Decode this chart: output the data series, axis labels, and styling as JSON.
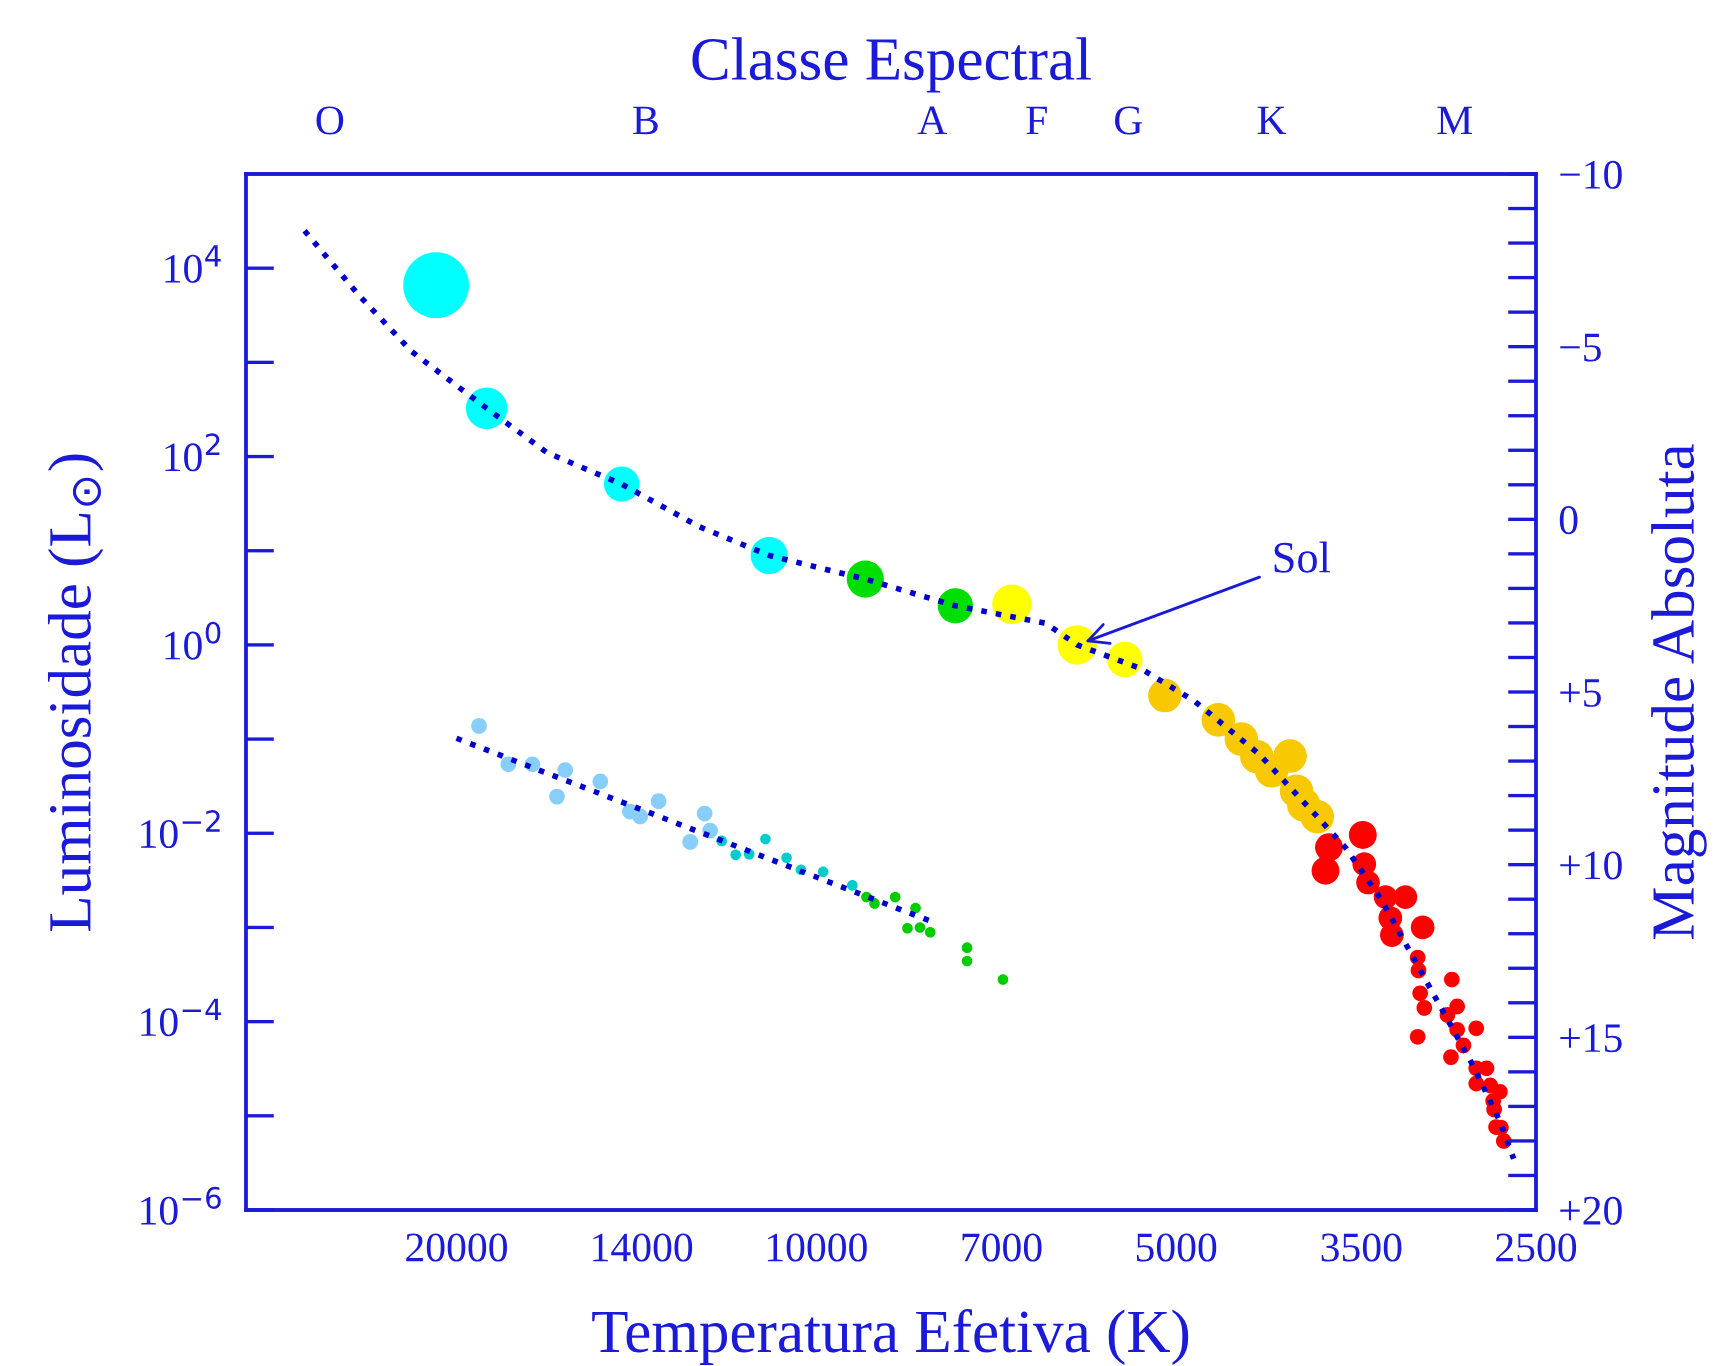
{
  "chart_data": {
    "type": "bubble",
    "log": "xy",
    "xlabel": "Temperatura Efetiva (K)",
    "ylabel": "Luminosidade (L$_{⊙}$)",
    "y2label": "Magnitude Absoluta",
    "title": "Classe Espectral",
    "xlim": [
      30000,
      2500
    ],
    "xticks": [
      20000,
      14000,
      10000,
      7000,
      5000,
      3500,
      2500
    ],
    "ylim": [
      1e-06,
      100000.0
    ],
    "yticks": [
      {
        "value": 1e-06,
        "label": "10$^{−6}$"
      },
      {
        "value": 1e-05,
        "label": null
      },
      {
        "value": 0.0001,
        "label": "10$^{−4}$"
      },
      {
        "value": 0.001,
        "label": null
      },
      {
        "value": 0.01,
        "label": "10$^{−2}$"
      },
      {
        "value": 0.1,
        "label": null
      },
      {
        "value": 1,
        "label": "10$^{0}$"
      },
      {
        "value": 10,
        "label": null
      },
      {
        "value": 100,
        "label": "10$^{2}$"
      },
      {
        "value": 1000,
        "label": null
      },
      {
        "value": 10000,
        "label": "10$^{4}$"
      }
    ],
    "y2lim": [
      20,
      -10
    ],
    "y2ticks": [
      {
        "value": -10,
        "label": "−10"
      },
      {
        "value": -9,
        "label": null
      },
      {
        "value": -8,
        "label": null
      },
      {
        "value": -7,
        "label": null
      },
      {
        "value": -6,
        "label": null
      },
      {
        "value": -5,
        "label": "−5"
      },
      {
        "value": -4,
        "label": null
      },
      {
        "value": -3,
        "label": null
      },
      {
        "value": -2,
        "label": null
      },
      {
        "value": -1,
        "label": null
      },
      {
        "value": 0,
        "label": "0"
      },
      {
        "value": 1,
        "label": null
      },
      {
        "value": 2,
        "label": null
      },
      {
        "value": 3,
        "label": null
      },
      {
        "value": 4,
        "label": null
      },
      {
        "value": 5,
        "label": "+5"
      },
      {
        "value": 6,
        "label": null
      },
      {
        "value": 7,
        "label": null
      },
      {
        "value": 8,
        "label": null
      },
      {
        "value": 9,
        "label": null
      },
      {
        "value": 10,
        "label": "+10"
      },
      {
        "value": 11,
        "label": null
      },
      {
        "value": 12,
        "label": null
      },
      {
        "value": 13,
        "label": null
      },
      {
        "value": 14,
        "label": null
      },
      {
        "value": 15,
        "label": "+15"
      },
      {
        "value": 16,
        "label": null
      },
      {
        "value": 17,
        "label": null
      },
      {
        "value": 18,
        "label": null
      },
      {
        "value": 19,
        "label": null
      },
      {
        "value": 20,
        "label": "+20"
      }
    ],
    "marker": "circle",
    "annotations": [
      {
        "text": "Sol",
        "x": 6050,
        "y": 1.0
      },
      "O",
      "B",
      "A",
      "F",
      "G",
      "K",
      "M"
    ],
    "series": [
      {
        "x": [
          20800,
          18870,
          14550,
          10950,
          9100,
          7650,
          6860,
          6050,
          5520,
          5110,
          4610,
          4410,
          4280,
          4015,
          4160,
          3965,
          3910,
          3810,
          3725,
          3750,
          3490,
          3480,
          3455,
          3340,
          3215,
          3310,
          3300,
          3110,
          3140,
          3135,
          3125,
          3100,
          3140,
          2940,
          2910,
          2965,
          2910,
          2805,
          2875,
          2945,
          2805,
          2750,
          2805,
          2730,
          2680,
          2715,
          2710,
          2700,
          2675,
          2660
        ],
        "values": [
          6600,
          325,
          51,
          8.9,
          5.0,
          2.6,
          2.7,
          1.0,
          0.7,
          0.29,
          0.16,
          0.1,
          0.065,
          0.066,
          0.046,
          0.028,
          0.02,
          0.015,
          0.0071,
          0.004,
          0.0096,
          0.0047,
          0.003,
          0.0021,
          0.0021,
          0.00126,
          0.00083,
          0.001,
          0.00048,
          0.00035,
          0.0002,
          0.00014,
          6.9e-05,
          0.00028,
          0.000145,
          0.000118,
          8.2e-05,
          8.5e-05,
          5.6e-05,
          4.2e-05,
          3.2e-05,
          3.2e-05,
          2.2e-05,
          2.1e-05,
          1.8e-05,
          1.44e-05,
          1.17e-05,
          7.6e-06,
          7.5e-06,
          5.4e-06
        ],
        "sizes": [
          1,
          0.4,
          0.29,
          0.32,
          0.32,
          0.29,
          0.36,
          0.36,
          0.29,
          0.26,
          0.26,
          0.26,
          0.26,
          0.26,
          0.26,
          0.26,
          0.26,
          0.26,
          0.18,
          0.18,
          0.18,
          0.13,
          0.13,
          0.13,
          0.13,
          0.13,
          0.13,
          0.13,
          0.057,
          0.057,
          0.057,
          0.057,
          0.057,
          0.057,
          0.057,
          0.057,
          0.057,
          0.057,
          0.057,
          0.057,
          0.057,
          0.057,
          0.057,
          0.057,
          0.057,
          0.057,
          0.057,
          0.057,
          0.057,
          0.057
        ],
        "colors": [
          "#00ffff",
          "#00ffff",
          "#00ffff",
          "#00ffff",
          "#00dd00",
          "#00dd00",
          "#ffff00",
          "#ffff00",
          "#ffff00",
          "#f8c800",
          "#f8c800",
          "#f8c800",
          "#f8c800",
          "#f8c800",
          "#f8c800",
          "#f8c800",
          "#f8c800",
          "#f8c800",
          "#ff0000",
          "#ff0000",
          "#ff0000",
          "#ff0000",
          "#ff0000",
          "#ff0000",
          "#ff0000",
          "#ff0000",
          "#ff0000",
          "#ff0000",
          "#ff0000",
          "#ff0000",
          "#ff0000",
          "#ff0000",
          "#ff0000",
          "#ff0000",
          "#ff0000",
          "#ff0000",
          "#ff0000",
          "#ff0000",
          "#ff0000",
          "#ff0000",
          "#ff0000",
          "#ff0000",
          "#ff0000",
          "#ff0000",
          "#ff0000",
          "#ff0000",
          "#ff0000",
          "#ff0000",
          "#ff0000",
          "#ff0000"
        ]
      },
      {
        "x": [
          19150,
          18100,
          17280,
          16220,
          16480,
          15160,
          14320,
          14040,
          13550,
          12400,
          12270,
          12750,
          12000,
          11030,
          11680,
          11380,
          10590,
          10300,
          9870,
          9330,
          9080,
          8940,
          8590,
          8260,
          8390,
          8190,
          8030,
          7480,
          7480,
          6980
        ],
        "values": [
          0.138,
          0.054,
          0.054,
          0.047,
          0.0245,
          0.0355,
          0.017,
          0.0151,
          0.0219,
          0.0162,
          0.0107,
          0.0081,
          0.0083,
          0.0087,
          0.0059,
          0.006,
          0.0055,
          0.0041,
          0.0039,
          0.0028,
          0.0021,
          0.0018,
          0.0021,
          0.00161,
          0.00098,
          0.001,
          0.00089,
          0.00061,
          0.00044,
          0.00028
        ],
        "sizes": [
          0.057,
          0.057,
          0.057,
          0.057,
          0.057,
          0.057,
          0.057,
          0.057,
          0.057,
          0.057,
          0.057,
          0.057,
          0.026,
          0.026,
          0.026,
          0.026,
          0.026,
          0.026,
          0.026,
          0.026,
          0.026,
          0.026,
          0.026,
          0.026,
          0.026,
          0.026,
          0.026,
          0.026,
          0.026,
          0.026
        ],
        "colors": [
          "#87cefa",
          "#87cefa",
          "#87cefa",
          "#87cefa",
          "#87cefa",
          "#87cefa",
          "#87cefa",
          "#87cefa",
          "#87cefa",
          "#87cefa",
          "#87cefa",
          "#87cefa",
          "#00cccc",
          "#00cccc",
          "#00cccc",
          "#00cccc",
          "#00cccc",
          "#00cccc",
          "#00cccc",
          "#00cccc",
          "#00cc00",
          "#00cc00",
          "#00cc00",
          "#00cc00",
          "#00cc00",
          "#00cc00",
          "#00cc00",
          "#00cc00",
          "#00cc00",
          "#00cc00"
        ]
      },
      {
        "type": "line",
        "color": "#0000cc",
        "line_style": "dotted",
        "marker": "none",
        "x": [
          26800,
          24150,
          21800,
          18870,
          16800,
          14550,
          12530,
          10950,
          9100,
          7650,
          6430,
          6050,
          5350,
          4820,
          4260,
          3810,
          3610,
          3370,
          3055,
          2825,
          2680,
          2610
        ],
        "values": [
          25000,
          5200,
          1300,
          325,
          110,
          51,
          18,
          8.9,
          5.0,
          2.6,
          1.7,
          1.0,
          0.56,
          0.25,
          0.069,
          0.015,
          0.0071,
          0.002,
          0.00021,
          3.5e-05,
          8.7e-06,
          3.5e-06
        ]
      },
      {
        "type": "line",
        "color": "#0000cc",
        "line_style": "dotted",
        "marker": "none",
        "x": [
          20000,
          8000
        ],
        "values": [
          0.102,
          0.00115
        ]
      }
    ]
  }
}
